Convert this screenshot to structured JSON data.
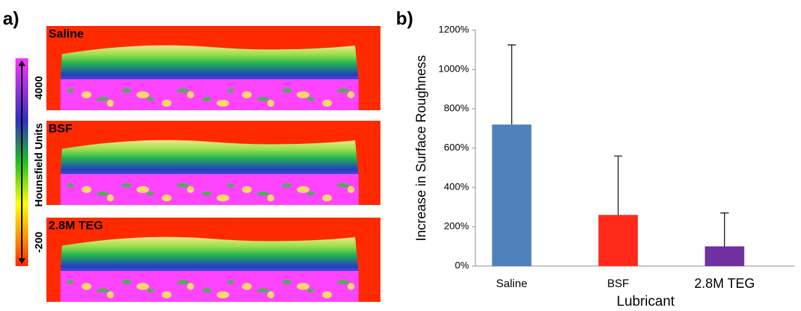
{
  "panel_a": {
    "label": "a)",
    "images": [
      "Saline",
      "BSF",
      "2.8M TEG"
    ],
    "colorbar": {
      "title": "Hounsfield Units",
      "ticks": [
        4000,
        -200
      ]
    }
  },
  "chart_data": {
    "type": "bar",
    "label": "b)",
    "x_label": "Lubricant",
    "y_label": "Increase in Surface Roughness",
    "categories": [
      "Saline",
      "BSF",
      "2.8M TEG"
    ],
    "values": [
      720,
      260,
      100
    ],
    "errors": [
      405,
      300,
      170
    ],
    "colors": [
      "#4f81bd",
      "#ff2a1a",
      "#7030a0"
    ],
    "ylim": [
      0,
      1200
    ],
    "yticks": [
      {
        "value": 0,
        "label": "0%"
      },
      {
        "value": 200,
        "label": "200%"
      },
      {
        "value": 400,
        "label": "400%"
      },
      {
        "value": 600,
        "label": "600%"
      },
      {
        "value": 800,
        "label": "800%"
      },
      {
        "value": 1000,
        "label": "1000%"
      },
      {
        "value": 1200,
        "label": "1200%"
      }
    ],
    "grid": false
  }
}
